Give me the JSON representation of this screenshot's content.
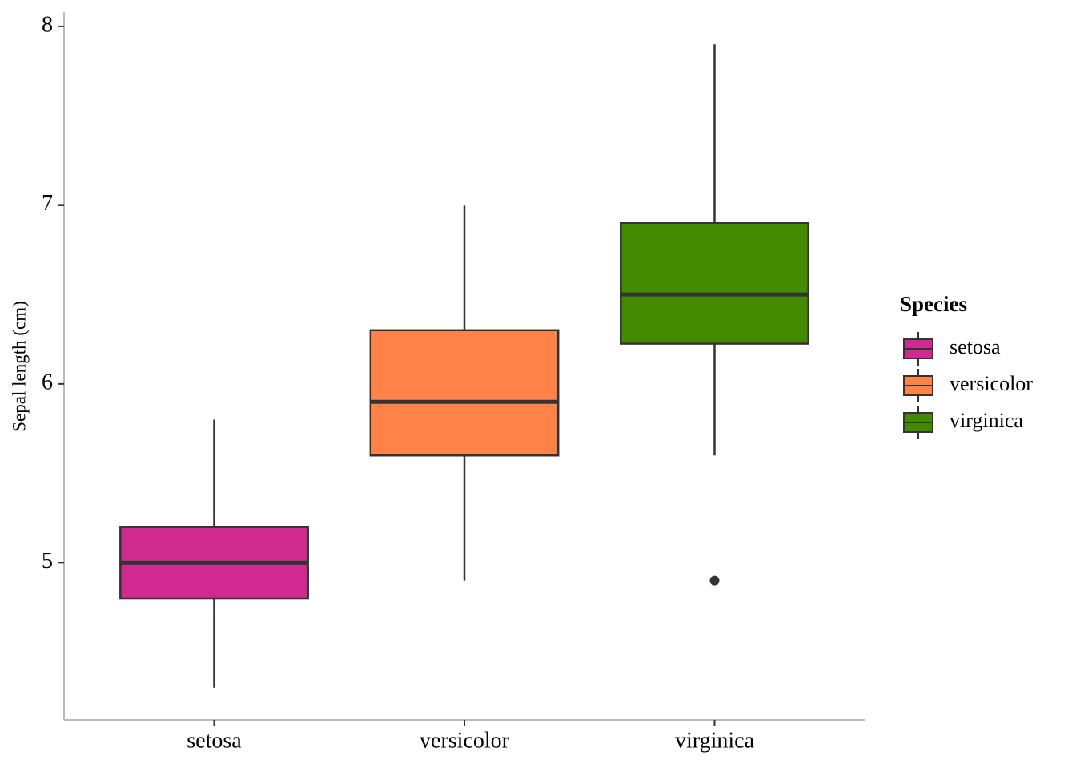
{
  "chart_data": {
    "type": "box",
    "ylabel": "Sepal length (cm)",
    "legend_title": "Species",
    "categories": [
      "setosa",
      "versicolor",
      "virginica"
    ],
    "series": [
      {
        "name": "setosa",
        "color": "#d02a90",
        "low": 4.3,
        "q1": 4.8,
        "median": 5.0,
        "q3": 5.2,
        "high": 5.8,
        "outliers": []
      },
      {
        "name": "versicolor",
        "color": "#ff8248",
        "low": 4.9,
        "q1": 5.6,
        "median": 5.9,
        "q3": 6.3,
        "high": 7.0,
        "outliers": []
      },
      {
        "name": "virginica",
        "color": "#448a00",
        "low": 5.6,
        "q1": 6.225,
        "median": 6.5,
        "q3": 6.9,
        "high": 7.9,
        "outliers": [
          4.9
        ]
      }
    ],
    "ylim": [
      4.12,
      8.08
    ],
    "yticks": [
      5,
      6,
      7,
      8
    ],
    "legend_position": "right"
  }
}
